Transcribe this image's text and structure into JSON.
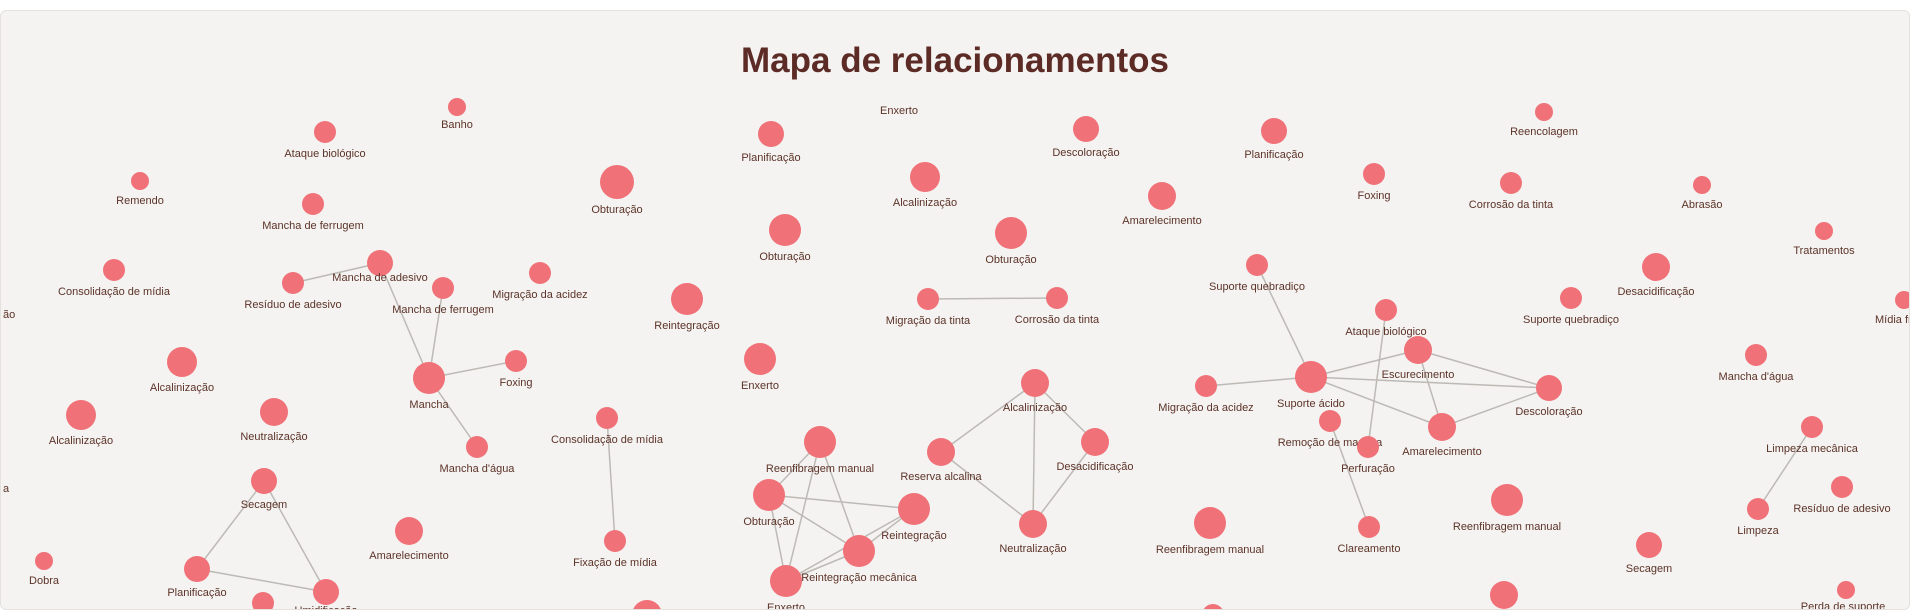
{
  "title": "Mapa de relacionamentos",
  "colors": {
    "node": "#f07178",
    "edge": "#bdbab6",
    "label": "#5c3328",
    "title": "#5c2b25"
  },
  "nodes": [
    {
      "id": "banho",
      "label": "Banho"
    },
    {
      "id": "ataque1",
      "label": "Ataque biológico"
    },
    {
      "id": "remendo",
      "label": "Remendo"
    },
    {
      "id": "ferrugem1",
      "label": "Mancha de ferrugem"
    },
    {
      "id": "consmidia1",
      "label": "Consolidação de mídia"
    },
    {
      "id": "residuo1",
      "label": "Resíduo de adesivo"
    },
    {
      "id": "mancha_adesivo",
      "label": "Mancha de adesivo"
    },
    {
      "id": "ferrugem2",
      "label": "Mancha de ferrugem"
    },
    {
      "id": "migacidez1",
      "label": "Migração da acidez"
    },
    {
      "id": "alcal1",
      "label": "Alcalinização"
    },
    {
      "id": "mancha",
      "label": "Mancha"
    },
    {
      "id": "foxing1",
      "label": "Foxing"
    },
    {
      "id": "alcal2",
      "label": "Alcalinização"
    },
    {
      "id": "neutral1",
      "label": "Neutralização"
    },
    {
      "id": "mancha_agua1",
      "label": "Mancha d'água"
    },
    {
      "id": "secagem1",
      "label": "Secagem"
    },
    {
      "id": "planif1",
      "label": "Planificação"
    },
    {
      "id": "umidif",
      "label": "Umidificação"
    },
    {
      "id": "dobra",
      "label": "Dobra"
    },
    {
      "id": "amarel1",
      "label": "Amarelecimento"
    },
    {
      "id": "bottom1",
      "label": ""
    },
    {
      "id": "obtur1",
      "label": "Obturação"
    },
    {
      "id": "consmidia2",
      "label": "Consolidação de mídia"
    },
    {
      "id": "fixmidia",
      "label": "Fixação de mídia"
    },
    {
      "id": "reintegr1",
      "label": "Reintegração"
    },
    {
      "id": "bottom2",
      "label": ""
    },
    {
      "id": "planif2",
      "label": "Planificação"
    },
    {
      "id": "obtur2",
      "label": "Obturação"
    },
    {
      "id": "enxerto1",
      "label": "Enxerto"
    },
    {
      "id": "enxerto_top",
      "label": "Enxerto"
    },
    {
      "id": "alcal3",
      "label": "Alcalinização"
    },
    {
      "id": "migtinta",
      "label": "Migração da tinta"
    },
    {
      "id": "corrtinta1",
      "label": "Corrosão da tinta"
    },
    {
      "id": "obtur3",
      "label": "Obturação"
    },
    {
      "id": "descolor1",
      "label": "Descoloração"
    },
    {
      "id": "amarel2",
      "label": "Amarelecimento"
    },
    {
      "id": "reenfib1",
      "label": "Reenfibragem manual"
    },
    {
      "id": "obtur4",
      "label": "Obturação"
    },
    {
      "id": "reintegr2",
      "label": "Reintegração"
    },
    {
      "id": "reint_mec",
      "label": "Reintegração mecânica"
    },
    {
      "id": "enxerto2",
      "label": "Enxerto"
    },
    {
      "id": "reserva",
      "label": "Reserva alcalina"
    },
    {
      "id": "alcal4",
      "label": "Alcalinização"
    },
    {
      "id": "desacid1",
      "label": "Desacidificação"
    },
    {
      "id": "neutral2",
      "label": "Neutralização"
    },
    {
      "id": "planif3",
      "label": "Planificação"
    },
    {
      "id": "foxing2",
      "label": "Foxing"
    },
    {
      "id": "suporte_q1",
      "label": "Suporte quebradiço"
    },
    {
      "id": "ataque2",
      "label": "Ataque biológico"
    },
    {
      "id": "migacidez2",
      "label": "Migração da acidez"
    },
    {
      "id": "suporte_acido",
      "label": "Suporte ácido"
    },
    {
      "id": "escurec",
      "label": "Escurecimento"
    },
    {
      "id": "remocao",
      "label": "Remoção de mancha"
    },
    {
      "id": "perfur",
      "label": "Perfuração"
    },
    {
      "id": "amarel3",
      "label": "Amarelecimento"
    },
    {
      "id": "descolor2",
      "label": "Descoloração"
    },
    {
      "id": "claream",
      "label": "Clareamento"
    },
    {
      "id": "reenfib2",
      "label": "Reenfibragem manual"
    },
    {
      "id": "bottom3",
      "label": ""
    },
    {
      "id": "reencol",
      "label": "Reencolagem"
    },
    {
      "id": "corrtinta2",
      "label": "Corrosão da tinta"
    },
    {
      "id": "suporte_q2",
      "label": "Suporte quebradiço"
    },
    {
      "id": "reenfib3",
      "label": "Reenfibragem manual"
    },
    {
      "id": "bottom4",
      "label": ""
    },
    {
      "id": "abrasao",
      "label": "Abrasão"
    },
    {
      "id": "tratam",
      "label": "Tratamentos"
    },
    {
      "id": "desacid2",
      "label": "Desacidificação"
    },
    {
      "id": "mancha_agua2",
      "label": "Mancha d'água"
    },
    {
      "id": "limp_mec",
      "label": "Limpeza mecânica"
    },
    {
      "id": "limpeza",
      "label": "Limpeza"
    },
    {
      "id": "residuo2",
      "label": "Resíduo de adesivo"
    },
    {
      "id": "secagem2",
      "label": "Secagem"
    },
    {
      "id": "perda",
      "label": "Perda de suporte"
    },
    {
      "id": "midia_fr",
      "label": "Mídia fr"
    },
    {
      "id": "cut_ao",
      "label": "ão"
    },
    {
      "id": "cut_a",
      "label": "a"
    }
  ],
  "edges": [
    [
      "residuo1",
      "mancha_adesivo"
    ],
    [
      "mancha_adesivo",
      "mancha"
    ],
    [
      "ferrugem2",
      "mancha"
    ],
    [
      "mancha",
      "foxing1"
    ],
    [
      "mancha",
      "mancha_agua1"
    ],
    [
      "secagem1",
      "planif1"
    ],
    [
      "secagem1",
      "umidif"
    ],
    [
      "planif1",
      "umidif"
    ],
    [
      "consmidia2",
      "fixmidia"
    ],
    [
      "migtinta",
      "corrtinta1"
    ],
    [
      "reenfib1",
      "obtur4"
    ],
    [
      "reenfib1",
      "reint_mec"
    ],
    [
      "reenfib1",
      "enxerto2"
    ],
    [
      "obtur4",
      "reintegr2"
    ],
    [
      "obtur4",
      "reint_mec"
    ],
    [
      "obtur4",
      "enxerto2"
    ],
    [
      "reintegr2",
      "reint_mec"
    ],
    [
      "reintegr2",
      "enxerto2"
    ],
    [
      "reint_mec",
      "enxerto2"
    ],
    [
      "reserva",
      "alcal4"
    ],
    [
      "reserva",
      "neutral2"
    ],
    [
      "alcal4",
      "desacid1"
    ],
    [
      "alcal4",
      "neutral2"
    ],
    [
      "desacid1",
      "neutral2"
    ],
    [
      "suporte_q1",
      "suporte_acido"
    ],
    [
      "migacidez2",
      "suporte_acido"
    ],
    [
      "suporte_acido",
      "escurec"
    ],
    [
      "suporte_acido",
      "amarel3"
    ],
    [
      "suporte_acido",
      "descolor2"
    ],
    [
      "escurec",
      "amarel3"
    ],
    [
      "escurec",
      "descolor2"
    ],
    [
      "amarel3",
      "descolor2"
    ],
    [
      "ataque2",
      "perfur"
    ],
    [
      "remocao",
      "claream"
    ],
    [
      "limp_mec",
      "limpeza"
    ]
  ]
}
